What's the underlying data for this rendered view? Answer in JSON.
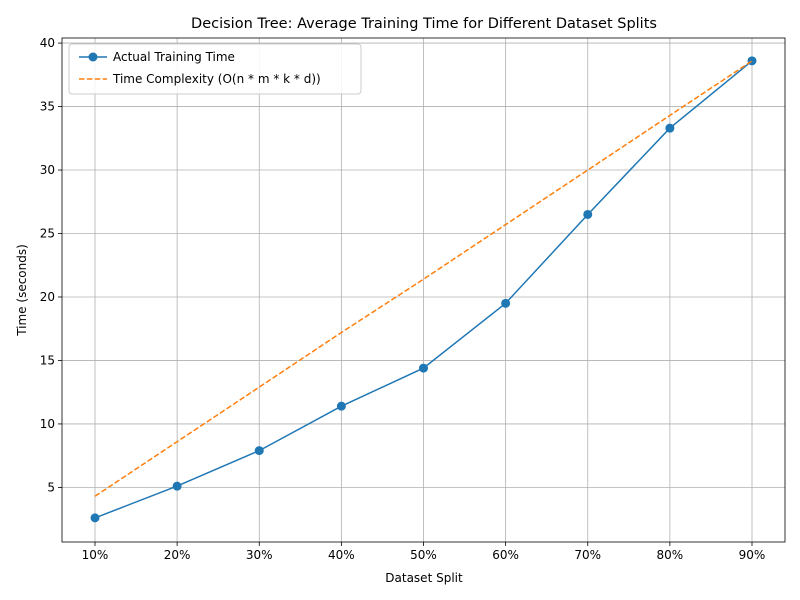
{
  "chart_data": {
    "type": "line",
    "title": "Decision Tree: Average Training Time for Different Dataset Splits",
    "xlabel": "Dataset Split",
    "ylabel": "Time (seconds)",
    "categories": [
      "10%",
      "20%",
      "30%",
      "40%",
      "50%",
      "60%",
      "70%",
      "80%",
      "90%"
    ],
    "ylim": [
      0.7,
      40.4
    ],
    "yticks": [
      5,
      10,
      15,
      20,
      25,
      30,
      35,
      40
    ],
    "grid": true,
    "legend_position": "top-left",
    "series": [
      {
        "name": "Actual Training Time",
        "style": "solid-with-markers",
        "color": "#1f77b4",
        "values": [
          2.6,
          5.1,
          7.9,
          11.4,
          14.4,
          19.5,
          26.5,
          33.3,
          38.6
        ]
      },
      {
        "name": "Time Complexity (O(n * m * k * d))",
        "style": "dashed",
        "color": "#ff7f0e",
        "values": [
          4.3,
          8.6,
          12.9,
          17.2,
          21.4,
          25.7,
          30.0,
          34.3,
          38.6
        ]
      }
    ]
  }
}
